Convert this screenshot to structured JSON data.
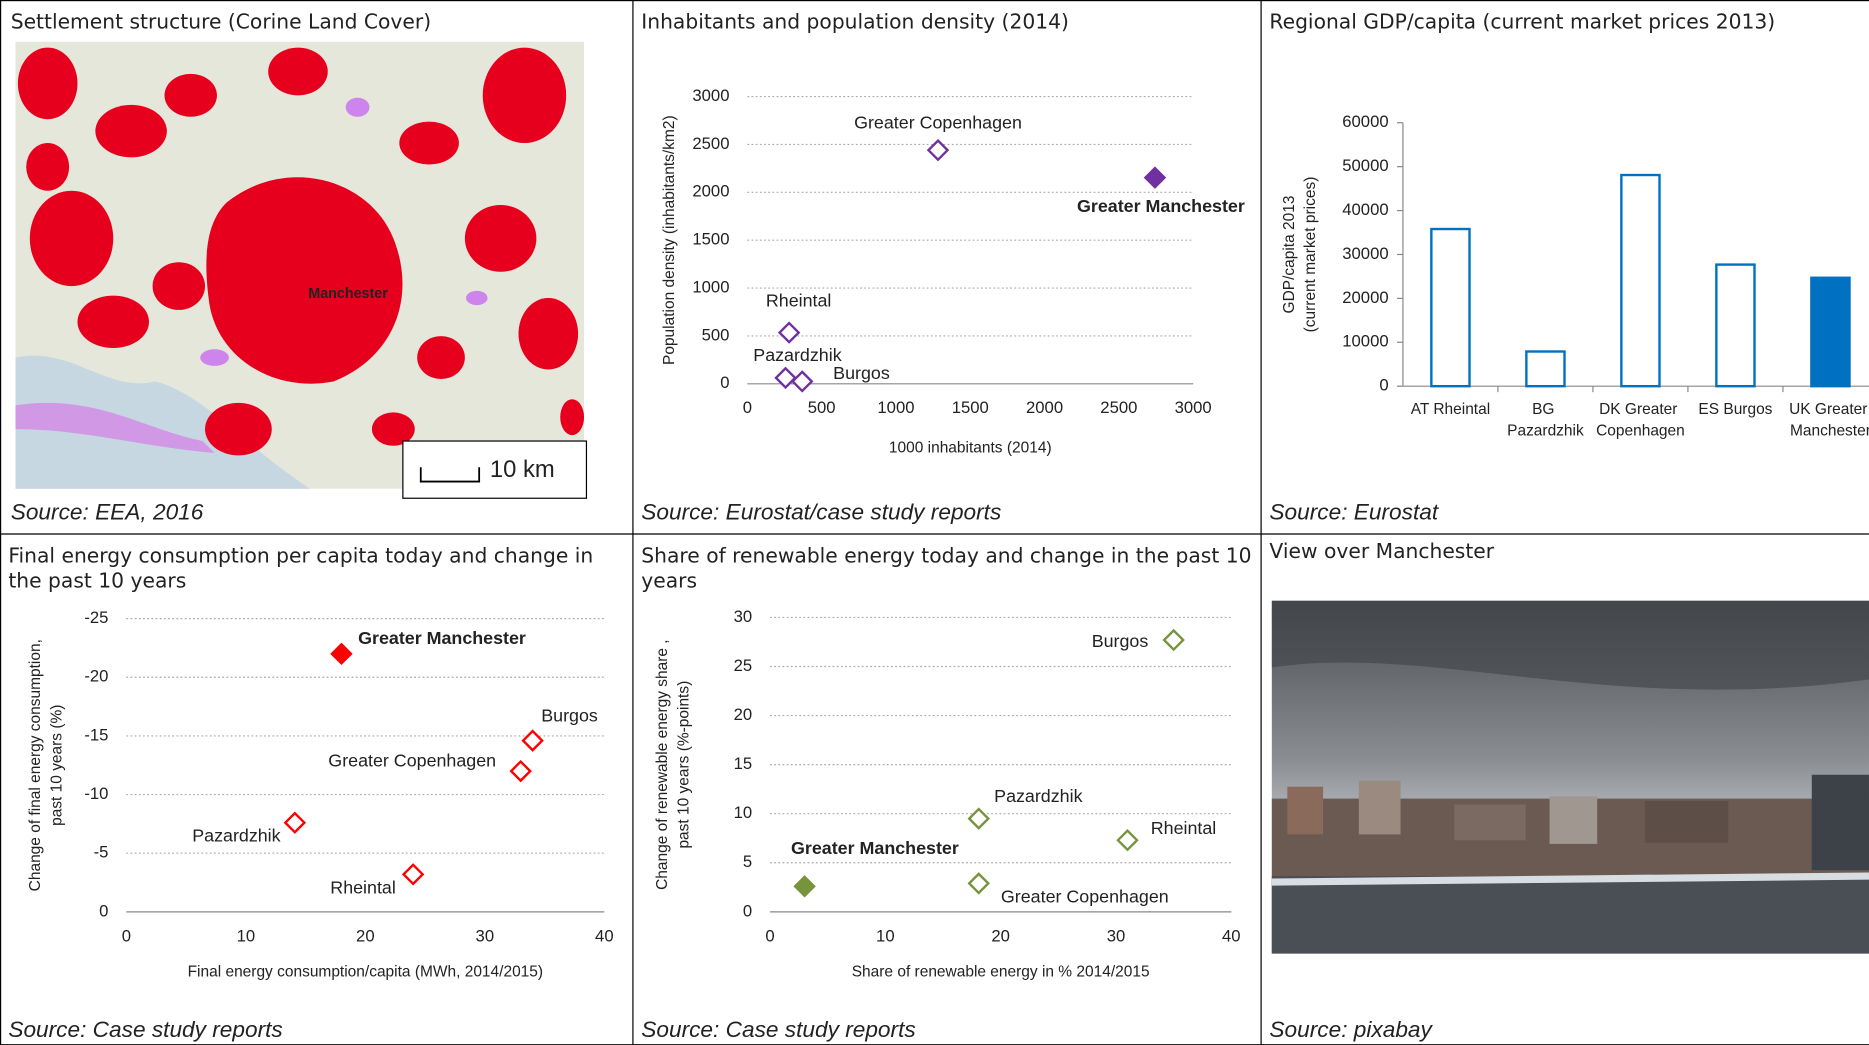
{
  "map": {
    "title": "Settlement structure (Corine Land Cover)",
    "place_label": "Manchester",
    "scale_label": "10 km",
    "source": "Source: EEA, 2016"
  },
  "photo": {
    "title": "View over Manchester",
    "source": "Source: pixabay"
  },
  "chart_data": [
    {
      "type": "scatter",
      "title": "Inhabitants and population density (2014)",
      "source": "Source: Eurostat/case study reports",
      "xlabel": "1000 inhabitants (2014)",
      "ylabel": "Population density (inhabitants/km2)",
      "xlim": [
        0,
        3000
      ],
      "xticks": [
        0,
        500,
        1000,
        1500,
        2000,
        2500,
        3000
      ],
      "ylim": [
        0,
        3000
      ],
      "yticks": [
        0,
        500,
        1000,
        1500,
        2000,
        2500,
        3000
      ],
      "grid": true,
      "series": [
        {
          "name": "Greater Copenhagen",
          "color": "#7030a0",
          "filled": false,
          "x": [
            1283
          ],
          "values": [
            2440
          ]
        },
        {
          "name": "Greater Manchester",
          "color": "#7030a0",
          "filled": true,
          "x": [
            2743
          ],
          "values": [
            2153
          ]
        },
        {
          "name": "Rheintal",
          "color": "#7030a0",
          "filled": false,
          "x": [
            281
          ],
          "values": [
            535
          ]
        },
        {
          "name": "Pazardzhik",
          "color": "#7030a0",
          "filled": false,
          "x": [
            257
          ],
          "values": [
            62
          ]
        },
        {
          "name": "Burgos",
          "color": "#7030a0",
          "filled": false,
          "x": [
            369
          ],
          "values": [
            25
          ]
        }
      ]
    },
    {
      "type": "bar",
      "title": "Regional GDP/capita (current market prices 2013)",
      "source": "Source: Eurostat",
      "ylabel": [
        "GDP/capita 2013",
        "(current market prices)"
      ],
      "categories": [
        "AT Rheintal",
        "BG Pazardzhik",
        "DK Greater Copenhagen",
        "ES Burgos",
        "UK Greater Manchester"
      ],
      "values": [
        35800,
        7900,
        48100,
        27700,
        24700
      ],
      "color": "#0070c0",
      "filled": [
        false,
        false,
        false,
        false,
        true
      ],
      "ylim": [
        0,
        60000
      ],
      "yticks": [
        0,
        10000,
        20000,
        30000,
        40000,
        50000,
        60000
      ],
      "grid": false
    },
    {
      "type": "scatter",
      "title": "Final energy consumption per capita today and change in the past 10 years",
      "source": "Source: Case study reports",
      "xlabel": "Final energy consumption/capita (MWh, 2014/2015)",
      "ylabel": [
        "Change of final energy consumption,",
        "past 10 years (%)"
      ],
      "xlim": [
        0,
        40
      ],
      "xticks": [
        0,
        10,
        20,
        30,
        40
      ],
      "ylim": [
        0,
        -25
      ],
      "yticks": [
        0,
        -5,
        -10,
        -15,
        -20,
        -25
      ],
      "grid": true,
      "series": [
        {
          "name": "Greater Manchester",
          "color": "#ff0000",
          "filled": true,
          "x": [
            18
          ],
          "values": [
            -22
          ]
        },
        {
          "name": "Burgos",
          "color": "#ff0000",
          "filled": false,
          "x": [
            34
          ],
          "values": [
            -14.6
          ]
        },
        {
          "name": "Greater Copenhagen",
          "color": "#ff0000",
          "filled": false,
          "x": [
            33
          ],
          "values": [
            -12
          ]
        },
        {
          "name": "Pazardzhik",
          "color": "#ff0000",
          "filled": false,
          "x": [
            14.1
          ],
          "values": [
            -7.6
          ]
        },
        {
          "name": "Rheintal",
          "color": "#ff0000",
          "filled": false,
          "x": [
            24
          ],
          "values": [
            -3.2
          ]
        }
      ]
    },
    {
      "type": "scatter",
      "title": "Share of renewable energy today and change in the past 10 years",
      "source": "Source: Case study reports",
      "xlabel": "Share of renewable energy in % 2014/2015",
      "ylabel": [
        "Change of renewable energy share ,",
        "past 10 years (%-points)"
      ],
      "xlim": [
        0,
        40
      ],
      "xticks": [
        0,
        10,
        20,
        30,
        40
      ],
      "ylim": [
        0,
        30
      ],
      "yticks": [
        0,
        5,
        10,
        15,
        20,
        25,
        30
      ],
      "grid": true,
      "series": [
        {
          "name": "Burgos",
          "color": "#77933c",
          "filled": false,
          "x": [
            35
          ],
          "values": [
            27.7
          ]
        },
        {
          "name": "Pazardzhik",
          "color": "#77933c",
          "filled": false,
          "x": [
            18.1
          ],
          "values": [
            9.5
          ]
        },
        {
          "name": "Rheintal",
          "color": "#77933c",
          "filled": false,
          "x": [
            31
          ],
          "values": [
            7.3
          ]
        },
        {
          "name": "Greater Copenhagen",
          "color": "#77933c",
          "filled": false,
          "x": [
            18.1
          ],
          "values": [
            2.9
          ]
        },
        {
          "name": "Greater Manchester",
          "color": "#77933c",
          "filled": true,
          "x": [
            3
          ],
          "values": [
            2.6
          ]
        }
      ]
    }
  ]
}
